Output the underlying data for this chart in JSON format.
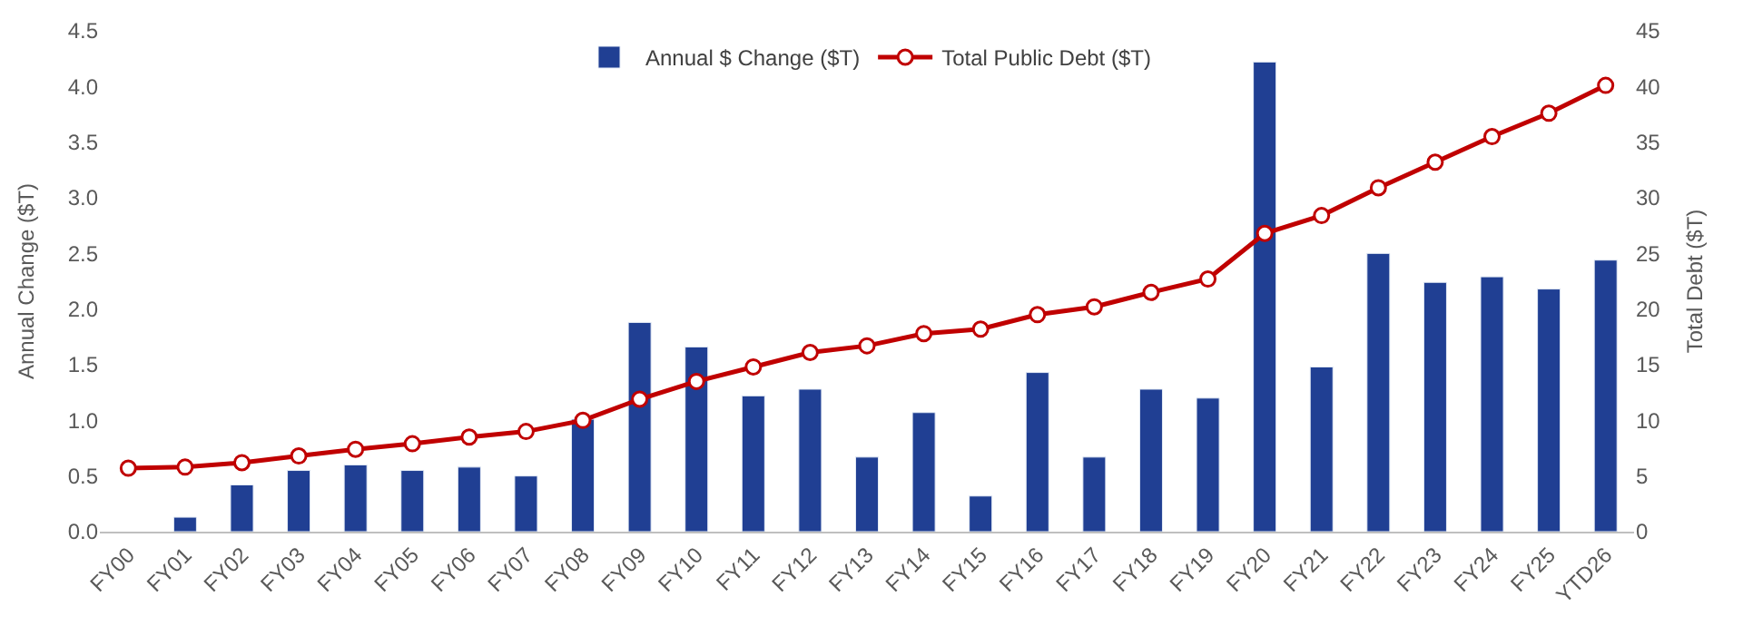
{
  "chart_data": {
    "type": "bar",
    "ylabel": "Annual Change ($T)",
    "y2label": "Total Debt ($T)",
    "categories": [
      "FY00",
      "FY01",
      "FY02",
      "FY03",
      "FY04",
      "FY05",
      "FY06",
      "FY07",
      "FY08",
      "FY09",
      "FY10",
      "FY11",
      "FY12",
      "FY13",
      "FY14",
      "FY15",
      "FY16",
      "FY17",
      "FY18",
      "FY19",
      "FY20",
      "FY21",
      "FY22",
      "FY23",
      "FY24",
      "FY25",
      "YTD26"
    ],
    "series": [
      {
        "name": "Annual $ Change ($T)",
        "color": "#203f93",
        "values": [
          null,
          0.13,
          0.42,
          0.55,
          0.6,
          0.55,
          0.58,
          0.5,
          1.01,
          1.88,
          1.66,
          1.22,
          1.28,
          0.67,
          1.07,
          0.32,
          1.43,
          0.67,
          1.28,
          1.2,
          4.22,
          1.48,
          2.5,
          2.24,
          2.29,
          2.18,
          2.44
        ]
      },
      {
        "name": "Total Public Debt ($T)",
        "type": "line",
        "axis": "y2",
        "color": "#c00000",
        "marker": "circle",
        "values": [
          5.7,
          5.8,
          6.2,
          6.8,
          7.4,
          7.9,
          8.5,
          9.0,
          10.0,
          11.9,
          13.5,
          14.8,
          16.1,
          16.7,
          17.8,
          18.2,
          19.5,
          20.2,
          21.5,
          22.7,
          26.8,
          28.4,
          30.9,
          33.2,
          35.5,
          37.6,
          40.1
        ]
      }
    ],
    "ylim": [
      0,
      4.5
    ],
    "yticks": [
      {
        "value": 0,
        "label": "0.0"
      },
      {
        "value": 0.5,
        "label": "0.5"
      },
      {
        "value": 1,
        "label": "1.0"
      },
      {
        "value": 1.5,
        "label": "1.5"
      },
      {
        "value": 2,
        "label": "2.0"
      },
      {
        "value": 2.5,
        "label": "2.5"
      },
      {
        "value": 3,
        "label": "3.0"
      },
      {
        "value": 3.5,
        "label": "3.5"
      },
      {
        "value": 4,
        "label": "4.0"
      },
      {
        "value": 4.5,
        "label": "4.5"
      }
    ],
    "y2lim": [
      0,
      45
    ],
    "y2ticks": [
      0,
      5,
      10,
      15,
      20,
      25,
      30,
      35,
      40,
      45
    ],
    "legend": "top"
  }
}
